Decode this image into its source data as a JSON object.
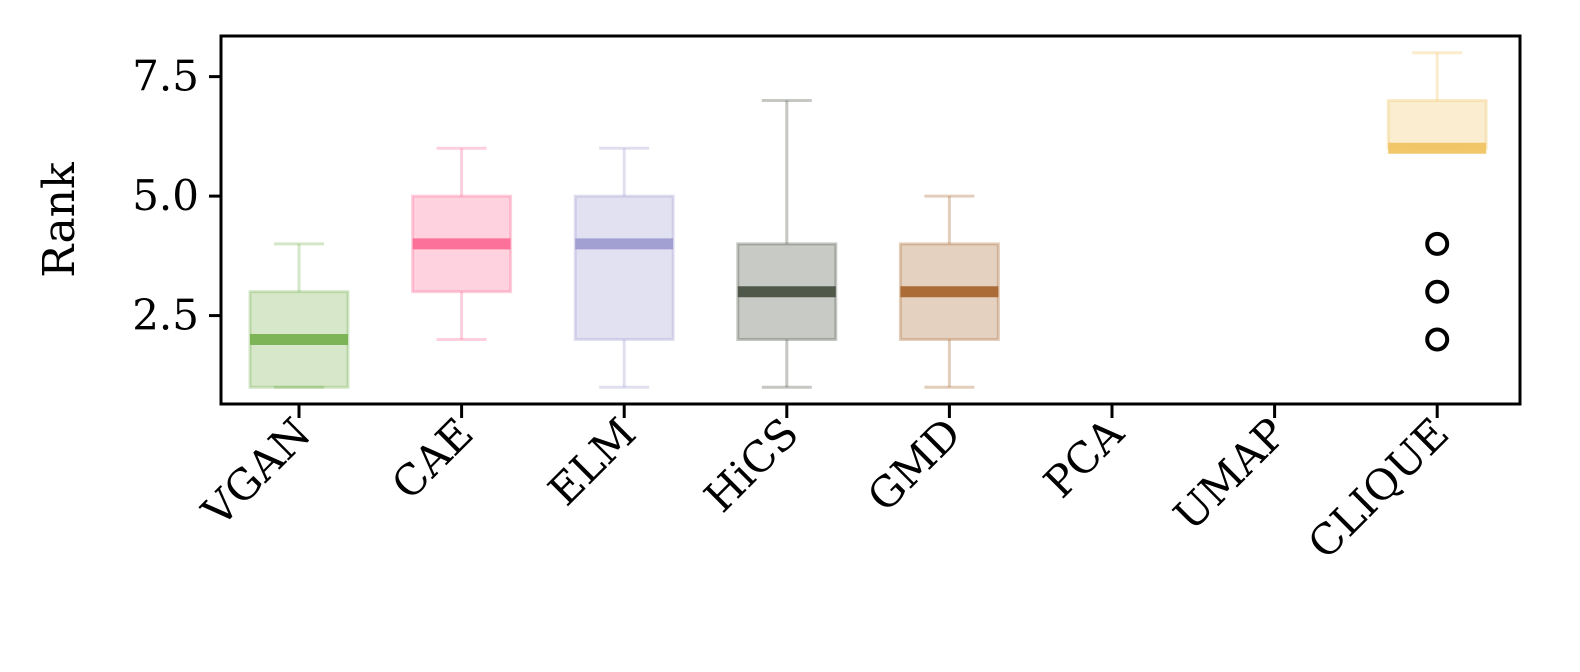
{
  "chart_data": {
    "type": "box",
    "ylabel": "Rank",
    "ylim": [
      0.65,
      8.35
    ],
    "yticks": [
      2.5,
      5.0,
      7.5
    ],
    "ytick_labels": [
      "2.5",
      "5.0",
      "7.5"
    ],
    "categories": [
      "VGAN",
      "CAE",
      "ELM",
      "HiCS",
      "GMD",
      "PCA",
      "UMAP",
      "CLIQUE"
    ],
    "grid": false,
    "legend": "none",
    "boxes": [
      {
        "category": "VGAN",
        "whisker_low": 1,
        "q1": 1,
        "median": 2,
        "q3": 3,
        "whisker_high": 4,
        "outliers": [],
        "color": "#77b150"
      },
      {
        "category": "CAE",
        "whisker_low": 2,
        "q1": 3,
        "median": 4,
        "q3": 5,
        "whisker_high": 6,
        "outliers": [],
        "color": "#fb6b95"
      },
      {
        "category": "ELM",
        "whisker_low": 1,
        "q1": 2,
        "median": 4,
        "q3": 5,
        "whisker_high": 6,
        "outliers": [],
        "color": "#9e9bd1"
      },
      {
        "category": "HiCS",
        "whisker_low": 1,
        "q1": 2,
        "median": 3,
        "q3": 4,
        "whisker_high": 7,
        "outliers": [],
        "color": "#4a5143"
      },
      {
        "category": "GMD",
        "whisker_low": 1,
        "q1": 2,
        "median": 3,
        "q3": 4,
        "whisker_high": 5,
        "outliers": [],
        "color": "#a8662f"
      },
      {
        "category": "PCA",
        "whisker_low": null,
        "q1": null,
        "median": null,
        "q3": null,
        "whisker_high": null,
        "outliers": [],
        "color": "#888888"
      },
      {
        "category": "UMAP",
        "whisker_low": null,
        "q1": null,
        "median": null,
        "q3": null,
        "whisker_high": null,
        "outliers": [],
        "color": "#888888"
      },
      {
        "category": "CLIQUE",
        "whisker_low": 6,
        "q1": 6,
        "median": 6,
        "q3": 7,
        "whisker_high": 8,
        "outliers": [
          2,
          3,
          4
        ],
        "color": "#f0c462"
      }
    ]
  }
}
